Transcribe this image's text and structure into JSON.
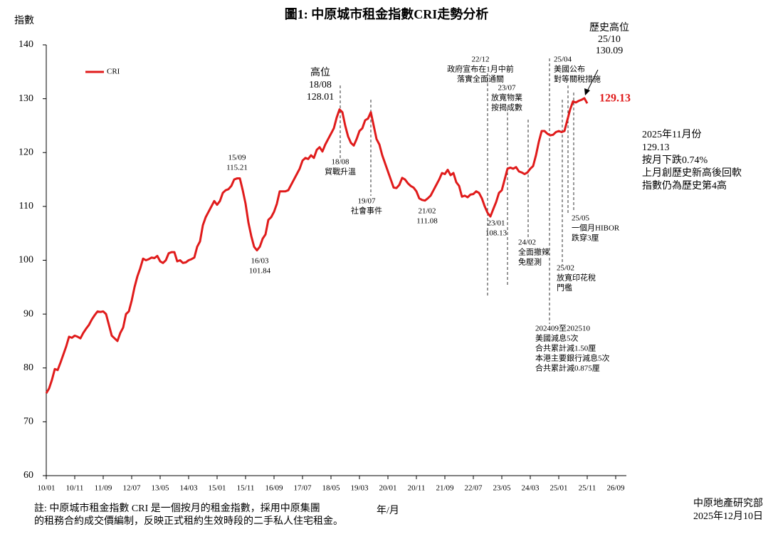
{
  "chart_data": {
    "type": "line",
    "title": "圖1: 中原城市租金指數CRI走勢分析",
    "y_label": "指數",
    "x_label": "年/月",
    "categories": [
      "10/01",
      null,
      null,
      null,
      null,
      null,
      null,
      null,
      null,
      null,
      "10/11",
      null,
      null,
      null,
      null,
      null,
      null,
      null,
      null,
      null,
      "11/09",
      null,
      null,
      null,
      null,
      null,
      null,
      null,
      null,
      null,
      "12/07",
      null,
      null,
      null,
      null,
      null,
      null,
      null,
      null,
      null,
      "13/05",
      null,
      null,
      null,
      null,
      null,
      null,
      null,
      null,
      null,
      "14/03",
      null,
      null,
      null,
      null,
      null,
      null,
      null,
      null,
      null,
      "15/01",
      null,
      null,
      null,
      null,
      null,
      null,
      null,
      null,
      null,
      "15/11",
      null,
      null,
      null,
      null,
      null,
      null,
      null,
      null,
      null,
      "16/09",
      null,
      null,
      null,
      null,
      null,
      null,
      null,
      null,
      null,
      "17/07",
      null,
      null,
      null,
      null,
      null,
      null,
      null,
      null,
      null,
      "18/05",
      null,
      null,
      null,
      null,
      null,
      null,
      null,
      null,
      null,
      "19/03",
      null,
      null,
      null,
      null,
      null,
      null,
      null,
      null,
      null,
      "20/01",
      null,
      null,
      null,
      null,
      null,
      null,
      null,
      null,
      null,
      "20/11",
      null,
      null,
      null,
      null,
      null,
      null,
      null,
      null,
      null,
      "21/09",
      null,
      null,
      null,
      null,
      null,
      null,
      null,
      null,
      null,
      "22/07",
      null,
      null,
      null,
      null,
      null,
      null,
      null,
      null,
      null,
      "23/05",
      null,
      null,
      null,
      null,
      null,
      null,
      null,
      null,
      null,
      "24/03",
      null,
      null,
      null,
      null,
      null,
      null,
      null,
      null,
      null,
      "25/01",
      null,
      null,
      null,
      null,
      null,
      null,
      null,
      null,
      null,
      "25/11",
      null,
      null,
      null,
      null,
      null,
      null,
      null,
      null,
      null,
      "26/09"
    ],
    "series": [
      {
        "name": "CRI",
        "color": "#e01b1b",
        "values": [
          75.3,
          76.2,
          77.8,
          79.8,
          79.6,
          81.0,
          82.5,
          84.0,
          85.8,
          85.6,
          86.0,
          85.8,
          85.5,
          86.5,
          87.3,
          88.0,
          89.0,
          89.8,
          90.5,
          90.4,
          90.5,
          90.0,
          88.0,
          86.0,
          85.5,
          85.0,
          86.5,
          87.5,
          90.0,
          90.5,
          92.5,
          95.0,
          97.0,
          98.5,
          100.3,
          100.0,
          100.2,
          100.5,
          100.4,
          100.8,
          99.8,
          99.5,
          100.0,
          101.3,
          101.5,
          101.5,
          99.8,
          100.0,
          99.5,
          99.6,
          100.0,
          100.2,
          100.5,
          102.5,
          103.5,
          106.5,
          108.0,
          109.0,
          110.0,
          111.0,
          110.3,
          111.0,
          112.5,
          113.0,
          113.2,
          113.8,
          115.0,
          115.2,
          115.21,
          113.0,
          110.5,
          107.0,
          104.5,
          102.5,
          101.84,
          102.5,
          104.0,
          104.8,
          107.5,
          108.0,
          109.0,
          110.5,
          112.8,
          112.8,
          112.8,
          113.0,
          114.0,
          115.0,
          116.0,
          117.0,
          118.5,
          119.0,
          118.8,
          119.5,
          119.0,
          120.5,
          121.0,
          120.2,
          121.5,
          122.5,
          123.5,
          124.5,
          126.5,
          128.01,
          127.5,
          125.0,
          123.0,
          121.8,
          121.3,
          122.5,
          124.0,
          124.5,
          126.0,
          126.3,
          127.5,
          125.0,
          122.5,
          121.5,
          119.5,
          118.0,
          116.5,
          115.0,
          113.5,
          113.4,
          114.0,
          115.3,
          115.0,
          114.3,
          113.8,
          113.5,
          112.8,
          111.5,
          111.2,
          111.08,
          111.5,
          112.0,
          113.0,
          114.0,
          115.0,
          116.2,
          116.0,
          116.8,
          115.8,
          116.2,
          114.5,
          113.8,
          111.8,
          112.0,
          111.7,
          112.2,
          112.3,
          112.8,
          112.5,
          111.5,
          110.0,
          108.8,
          108.13,
          109.5,
          110.8,
          112.5,
          113.0,
          115.0,
          117.0,
          117.2,
          117.0,
          117.3,
          116.5,
          116.3,
          116.0,
          116.3,
          117.0,
          117.5,
          119.5,
          122.0,
          124.0,
          124.0,
          123.5,
          123.2,
          123.3,
          123.8,
          124.0,
          123.8,
          124.0,
          126.0,
          128.0,
          129.5,
          129.3,
          129.6,
          129.8,
          130.09,
          129.13,
          null,
          null,
          null,
          null,
          null,
          null,
          null,
          null,
          null,
          null
        ]
      }
    ],
    "ylim": [
      60,
      140
    ],
    "yticks": [
      60,
      70,
      80,
      90,
      100,
      110,
      120,
      130,
      140
    ],
    "grid": false,
    "legend": "upper-left",
    "annotations": [
      {
        "lines": [
          "高位",
          "18/08",
          "128.01"
        ]
      },
      {
        "lines": [
          "18/08",
          "貿戰升溫"
        ]
      },
      {
        "lines": [
          "19/07",
          "社會事件"
        ]
      },
      {
        "lines": [
          "15/09",
          "115.21"
        ]
      },
      {
        "lines": [
          "16/03",
          "101.84"
        ]
      },
      {
        "lines": [
          "21/02",
          "111.08"
        ]
      },
      {
        "lines": [
          "23/01",
          "108.13"
        ]
      },
      {
        "lines": [
          "22/12",
          "政府宣布在1月中前",
          "落實全面通關"
        ]
      },
      {
        "lines": [
          "23/07",
          "放寬物業",
          "按揭成數"
        ]
      },
      {
        "lines": [
          "24/02",
          "全面撤辣",
          "免壓測"
        ]
      },
      {
        "lines": [
          "25/04",
          "美國公布",
          "對等關稅措施"
        ]
      },
      {
        "lines": [
          "歷史高位",
          "25/10",
          "130.09"
        ]
      },
      {
        "lines": [
          "129.13"
        ]
      },
      {
        "lines": [
          "25/05",
          "一個月HIBOR",
          "跌穿3厘"
        ]
      },
      {
        "lines": [
          "25/02",
          "放寬印花稅",
          "門檻"
        ]
      },
      {
        "lines": [
          "202409至202510",
          "美國減息5次",
          "合共累計減1.50厘",
          "本港主要銀行減息5次",
          "合共累計減0.875厘"
        ]
      }
    ],
    "note_box": [
      "2025年11月份",
      "129.13",
      "按月下跌0.74%",
      "上月創歷史新高後回軟",
      "指數仍為歷史第4高"
    ],
    "footnote": [
      "註: 中原城市租金指數 CRI 是一個按月的租金指數，採用中原集團",
      "的租務合約成交價編制，反映正式租約生效時段的二手私人住宅租金。"
    ],
    "source": [
      "中原地產研究部",
      "2025年12月10日"
    ]
  }
}
